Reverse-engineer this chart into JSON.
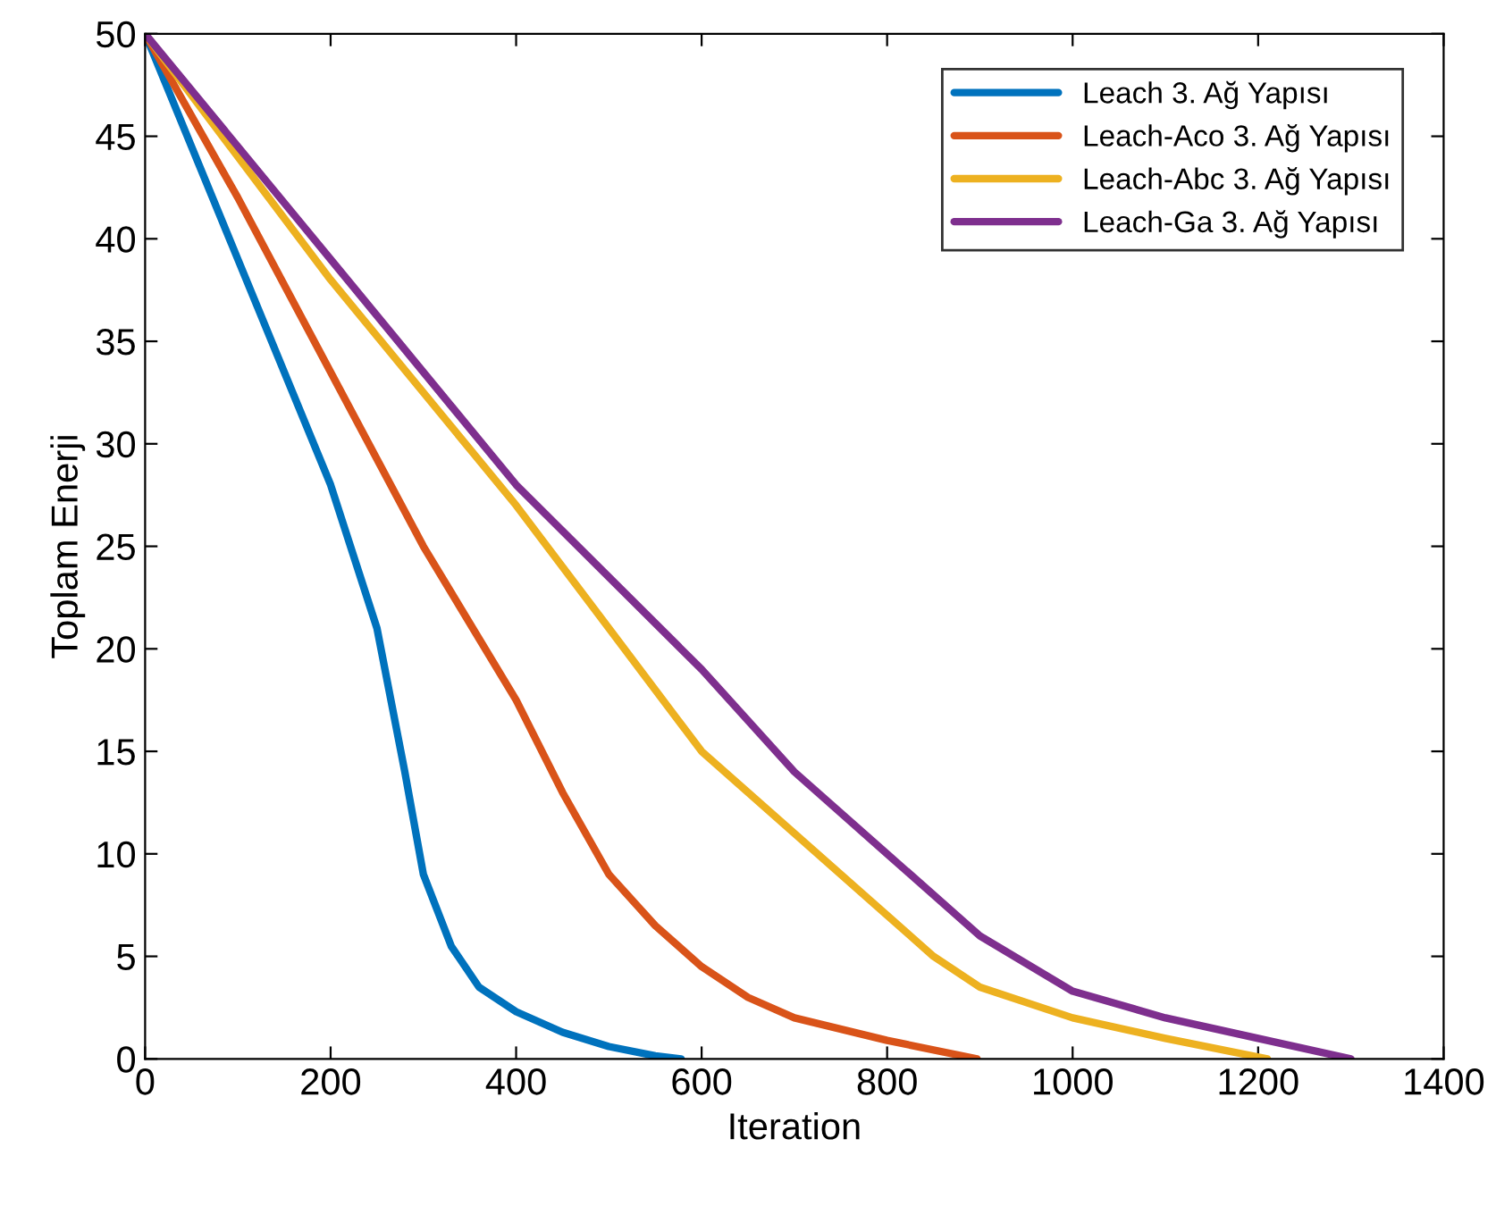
{
  "chart_data": {
    "type": "line",
    "xlabel": "Iteration",
    "ylabel": "Toplam Enerji",
    "xlim": [
      0,
      1400
    ],
    "xticks": [
      0,
      200,
      400,
      600,
      800,
      1000,
      1200,
      1400
    ],
    "ylim": [
      0,
      50
    ],
    "yticks": [
      0,
      5,
      10,
      15,
      20,
      25,
      30,
      35,
      40,
      45,
      50
    ],
    "grid": false,
    "legend": "top right",
    "marker": "none",
    "line_style": "solid",
    "series": [
      {
        "name": "Leach 3. Ağ Yapısı",
        "color": "#0072bd",
        "x": [
          0,
          100,
          200,
          250,
          280,
          300,
          330,
          360,
          400,
          450,
          500,
          550,
          578
        ],
        "values": [
          50,
          39,
          28,
          21,
          14,
          9,
          5.5,
          3.5,
          2.3,
          1.3,
          0.6,
          0.15,
          0
        ]
      },
      {
        "name": "Leach-Aco 3. Ağ Yapısı",
        "color": "#d95319",
        "x": [
          0,
          100,
          200,
          300,
          400,
          450,
          500,
          550,
          600,
          650,
          700,
          800,
          897
        ],
        "values": [
          50,
          42,
          33.5,
          25,
          17.5,
          13,
          9,
          6.5,
          4.5,
          3,
          2,
          0.9,
          0
        ]
      },
      {
        "name": "Leach-Abc 3. Ağ Yapısı",
        "color": "#edb120",
        "x": [
          0,
          200,
          400,
          500,
          600,
          700,
          800,
          850,
          900,
          1000,
          1100,
          1210
        ],
        "values": [
          50,
          38,
          27,
          21,
          15,
          11,
          7,
          5,
          3.5,
          2,
          1,
          0
        ]
      },
      {
        "name": "Leach-Ga 3. Ağ Yapısı",
        "color": "#7e2f8e",
        "x": [
          0,
          200,
          400,
          600,
          700,
          800,
          900,
          1000,
          1100,
          1200,
          1300
        ],
        "values": [
          50,
          39,
          28,
          19,
          14,
          10,
          6,
          3.3,
          2,
          1,
          0
        ]
      }
    ]
  }
}
